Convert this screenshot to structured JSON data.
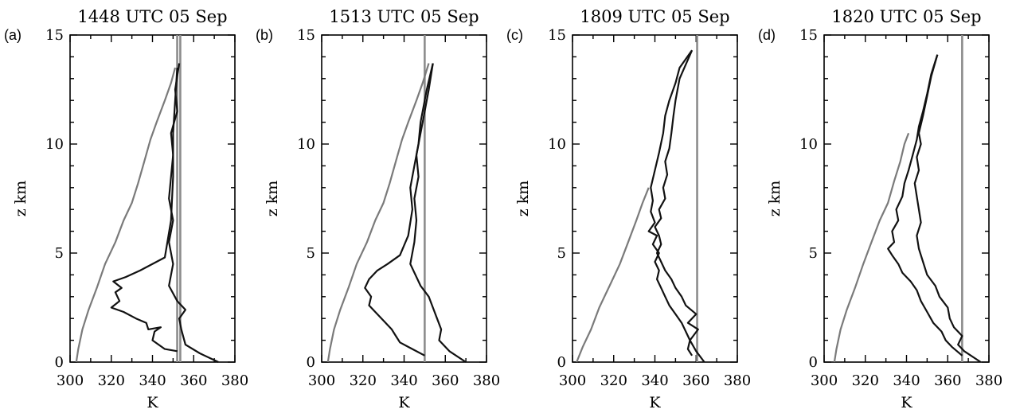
{
  "chart_data": [
    {
      "type": "line",
      "letter": "(a)",
      "title": "1448 UTC 05 Sep",
      "xlabel": "K",
      "ylabel": "z km",
      "xlim": [
        300,
        380
      ],
      "ylim": [
        0,
        15
      ],
      "xticks": [
        "300",
        "320",
        "340",
        "360",
        "380"
      ],
      "yticks": [
        "0",
        "5",
        "10",
        "15"
      ],
      "vlines": [
        352,
        353.5
      ],
      "series": [
        {
          "role": "environment",
          "color": "#7a7a7a",
          "x": [
            303,
            304,
            306,
            309,
            313,
            317,
            322,
            326,
            330,
            333,
            336,
            339,
            342,
            346,
            349,
            351
          ],
          "z": [
            0,
            0.6,
            1.5,
            2.4,
            3.4,
            4.5,
            5.5,
            6.5,
            7.3,
            8.2,
            9.2,
            10.2,
            11.0,
            12.0,
            12.8,
            13.5
          ]
        },
        {
          "role": "profile-lower",
          "color": "#111111",
          "x": [
            352,
            346,
            340,
            341,
            344,
            338,
            337,
            332,
            326,
            320,
            324,
            322,
            325,
            321,
            327,
            334,
            346,
            349,
            350,
            350,
            351,
            352
          ],
          "z": [
            0.5,
            0.6,
            1.0,
            1.4,
            1.6,
            1.5,
            1.8,
            2.0,
            2.3,
            2.5,
            2.8,
            3.2,
            3.4,
            3.7,
            3.9,
            4.2,
            4.8,
            6.5,
            8.5,
            10.5,
            12.0,
            13.5
          ]
        },
        {
          "role": "profile-upper",
          "color": "#111111",
          "x": [
            372,
            363,
            356,
            354,
            353,
            356,
            352,
            348,
            350,
            348,
            350,
            348,
            349,
            350,
            349,
            352,
            351,
            353
          ],
          "z": [
            0,
            0.4,
            0.8,
            1.5,
            2.0,
            2.4,
            2.8,
            3.5,
            4.5,
            5.5,
            6.5,
            7.5,
            8.5,
            9.5,
            10.5,
            11.5,
            12.5,
            13.7
          ]
        }
      ]
    },
    {
      "type": "line",
      "letter": "(b)",
      "title": "1513 UTC 05 Sep",
      "xlabel": "K",
      "ylabel": "z km",
      "xlim": [
        300,
        380
      ],
      "ylim": [
        0,
        15
      ],
      "xticks": [
        "300",
        "320",
        "340",
        "360",
        "380"
      ],
      "yticks": [
        "0",
        "5",
        "10",
        "15"
      ],
      "vlines": [
        350
      ],
      "series": [
        {
          "role": "environment",
          "color": "#7a7a7a",
          "x": [
            303,
            304,
            306,
            309,
            313,
            317,
            322,
            326,
            330,
            333,
            336,
            339,
            342,
            346,
            349,
            352
          ],
          "z": [
            0,
            0.6,
            1.5,
            2.4,
            3.4,
            4.5,
            5.5,
            6.5,
            7.3,
            8.2,
            9.2,
            10.2,
            11.0,
            12.0,
            12.8,
            13.7
          ]
        },
        {
          "role": "profile-lower",
          "color": "#111111",
          "x": [
            350,
            344,
            338,
            336,
            334,
            332,
            330,
            327,
            323,
            324,
            321,
            323,
            327,
            332,
            338,
            342,
            344,
            343,
            345,
            347,
            348,
            351,
            354
          ],
          "z": [
            0.3,
            0.6,
            0.9,
            1.2,
            1.5,
            1.7,
            1.9,
            2.2,
            2.6,
            3.0,
            3.4,
            3.8,
            4.2,
            4.5,
            4.9,
            5.8,
            7.0,
            8.0,
            9.0,
            10.0,
            11.0,
            12.5,
            13.7
          ]
        },
        {
          "role": "profile-upper",
          "color": "#111111",
          "x": [
            370,
            362,
            357,
            358,
            356,
            354,
            352,
            348,
            343,
            345,
            346,
            345,
            347,
            346,
            348,
            350,
            352,
            354
          ],
          "z": [
            0,
            0.5,
            1.0,
            1.5,
            2.0,
            2.5,
            3.0,
            3.5,
            4.5,
            5.5,
            6.5,
            7.5,
            8.5,
            9.5,
            10.5,
            11.5,
            12.5,
            13.7
          ]
        }
      ]
    },
    {
      "type": "line",
      "letter": "(c)",
      "title": "1809 UTC 05 Sep",
      "xlabel": "K",
      "ylabel": "z km",
      "xlim": [
        300,
        380
      ],
      "ylim": [
        0,
        15
      ],
      "xticks": [
        "300",
        "320",
        "340",
        "360",
        "380"
      ],
      "yticks": [
        "0",
        "5",
        "10",
        "15"
      ],
      "vlines": [
        360.5
      ],
      "series": [
        {
          "role": "environment",
          "color": "#7a7a7a",
          "x": [
            302,
            305,
            309,
            313,
            318,
            323,
            327,
            331,
            334,
            337
          ],
          "z": [
            0,
            0.7,
            1.5,
            2.5,
            3.5,
            4.5,
            5.5,
            6.5,
            7.3,
            8.0
          ]
        },
        {
          "role": "profile-lower",
          "color": "#111111",
          "x": [
            358,
            356,
            357,
            355,
            353,
            350,
            347,
            345,
            343,
            341,
            342,
            340,
            342,
            339,
            341,
            337,
            340,
            338,
            339,
            338,
            340,
            342,
            344,
            345,
            347,
            350,
            352,
            358
          ],
          "z": [
            0.3,
            0.6,
            1.0,
            1.4,
            1.8,
            2.2,
            2.6,
            3.0,
            3.4,
            3.8,
            4.2,
            4.6,
            5.0,
            5.4,
            5.8,
            6.0,
            6.4,
            6.9,
            7.4,
            8.0,
            8.8,
            9.6,
            10.5,
            11.3,
            12.0,
            12.8,
            13.5,
            14.3
          ]
        },
        {
          "role": "profile-upper",
          "color": "#111111",
          "x": [
            364,
            360,
            357,
            361,
            356,
            360,
            355,
            353,
            350,
            348,
            345,
            343,
            341,
            343,
            342,
            340,
            343,
            342,
            345,
            344,
            346,
            345,
            347,
            348,
            349,
            350,
            352,
            358
          ],
          "z": [
            0,
            0.5,
            1.0,
            1.5,
            1.8,
            2.2,
            2.6,
            3.0,
            3.4,
            3.8,
            4.2,
            4.6,
            5.0,
            5.4,
            5.8,
            6.2,
            6.6,
            7.0,
            7.5,
            8.0,
            8.6,
            9.2,
            9.8,
            10.5,
            11.3,
            12.0,
            13.0,
            14.3
          ]
        }
      ]
    },
    {
      "type": "line",
      "letter": "(d)",
      "title": "1820 UTC 05 Sep",
      "xlabel": "K",
      "ylabel": "z km",
      "xlim": [
        300,
        380
      ],
      "ylim": [
        0,
        15
      ],
      "xticks": [
        "300",
        "320",
        "340",
        "360",
        "380"
      ],
      "yticks": [
        "0",
        "5",
        "10",
        "15"
      ],
      "vlines": [
        367
      ],
      "series": [
        {
          "role": "environment",
          "color": "#7a7a7a",
          "x": [
            305,
            306,
            308,
            311,
            315,
            319,
            323,
            327,
            331,
            334,
            337,
            339,
            341
          ],
          "z": [
            0,
            0.6,
            1.5,
            2.4,
            3.4,
            4.5,
            5.5,
            6.5,
            7.3,
            8.3,
            9.2,
            10.0,
            10.5
          ]
        },
        {
          "role": "profile-lower",
          "color": "#111111",
          "x": [
            367,
            362,
            359,
            357,
            353,
            350,
            347,
            345,
            342,
            338,
            336,
            333,
            331,
            334,
            333,
            336,
            335,
            338,
            339,
            341,
            343,
            345,
            346,
            348,
            350,
            352,
            355
          ],
          "z": [
            0.3,
            0.7,
            1.0,
            1.4,
            1.8,
            2.3,
            2.8,
            3.3,
            3.7,
            4.1,
            4.5,
            4.9,
            5.2,
            5.5,
            6.0,
            6.5,
            7.0,
            7.6,
            8.2,
            8.8,
            9.5,
            10.2,
            10.8,
            11.5,
            12.3,
            13.2,
            14.1
          ]
        },
        {
          "role": "profile-upper",
          "color": "#111111",
          "x": [
            376,
            368,
            365,
            367,
            363,
            361,
            360,
            356,
            354,
            350,
            348,
            346,
            345,
            347,
            346,
            345,
            344,
            346,
            345,
            347,
            346,
            348,
            350,
            352,
            355
          ],
          "z": [
            0,
            0.5,
            0.8,
            1.2,
            1.6,
            2.0,
            2.5,
            3.0,
            3.5,
            4.0,
            4.6,
            5.2,
            5.8,
            6.4,
            7.0,
            7.6,
            8.2,
            8.8,
            9.4,
            10.0,
            10.5,
            11.3,
            12.2,
            13.1,
            14.1
          ]
        }
      ]
    }
  ]
}
